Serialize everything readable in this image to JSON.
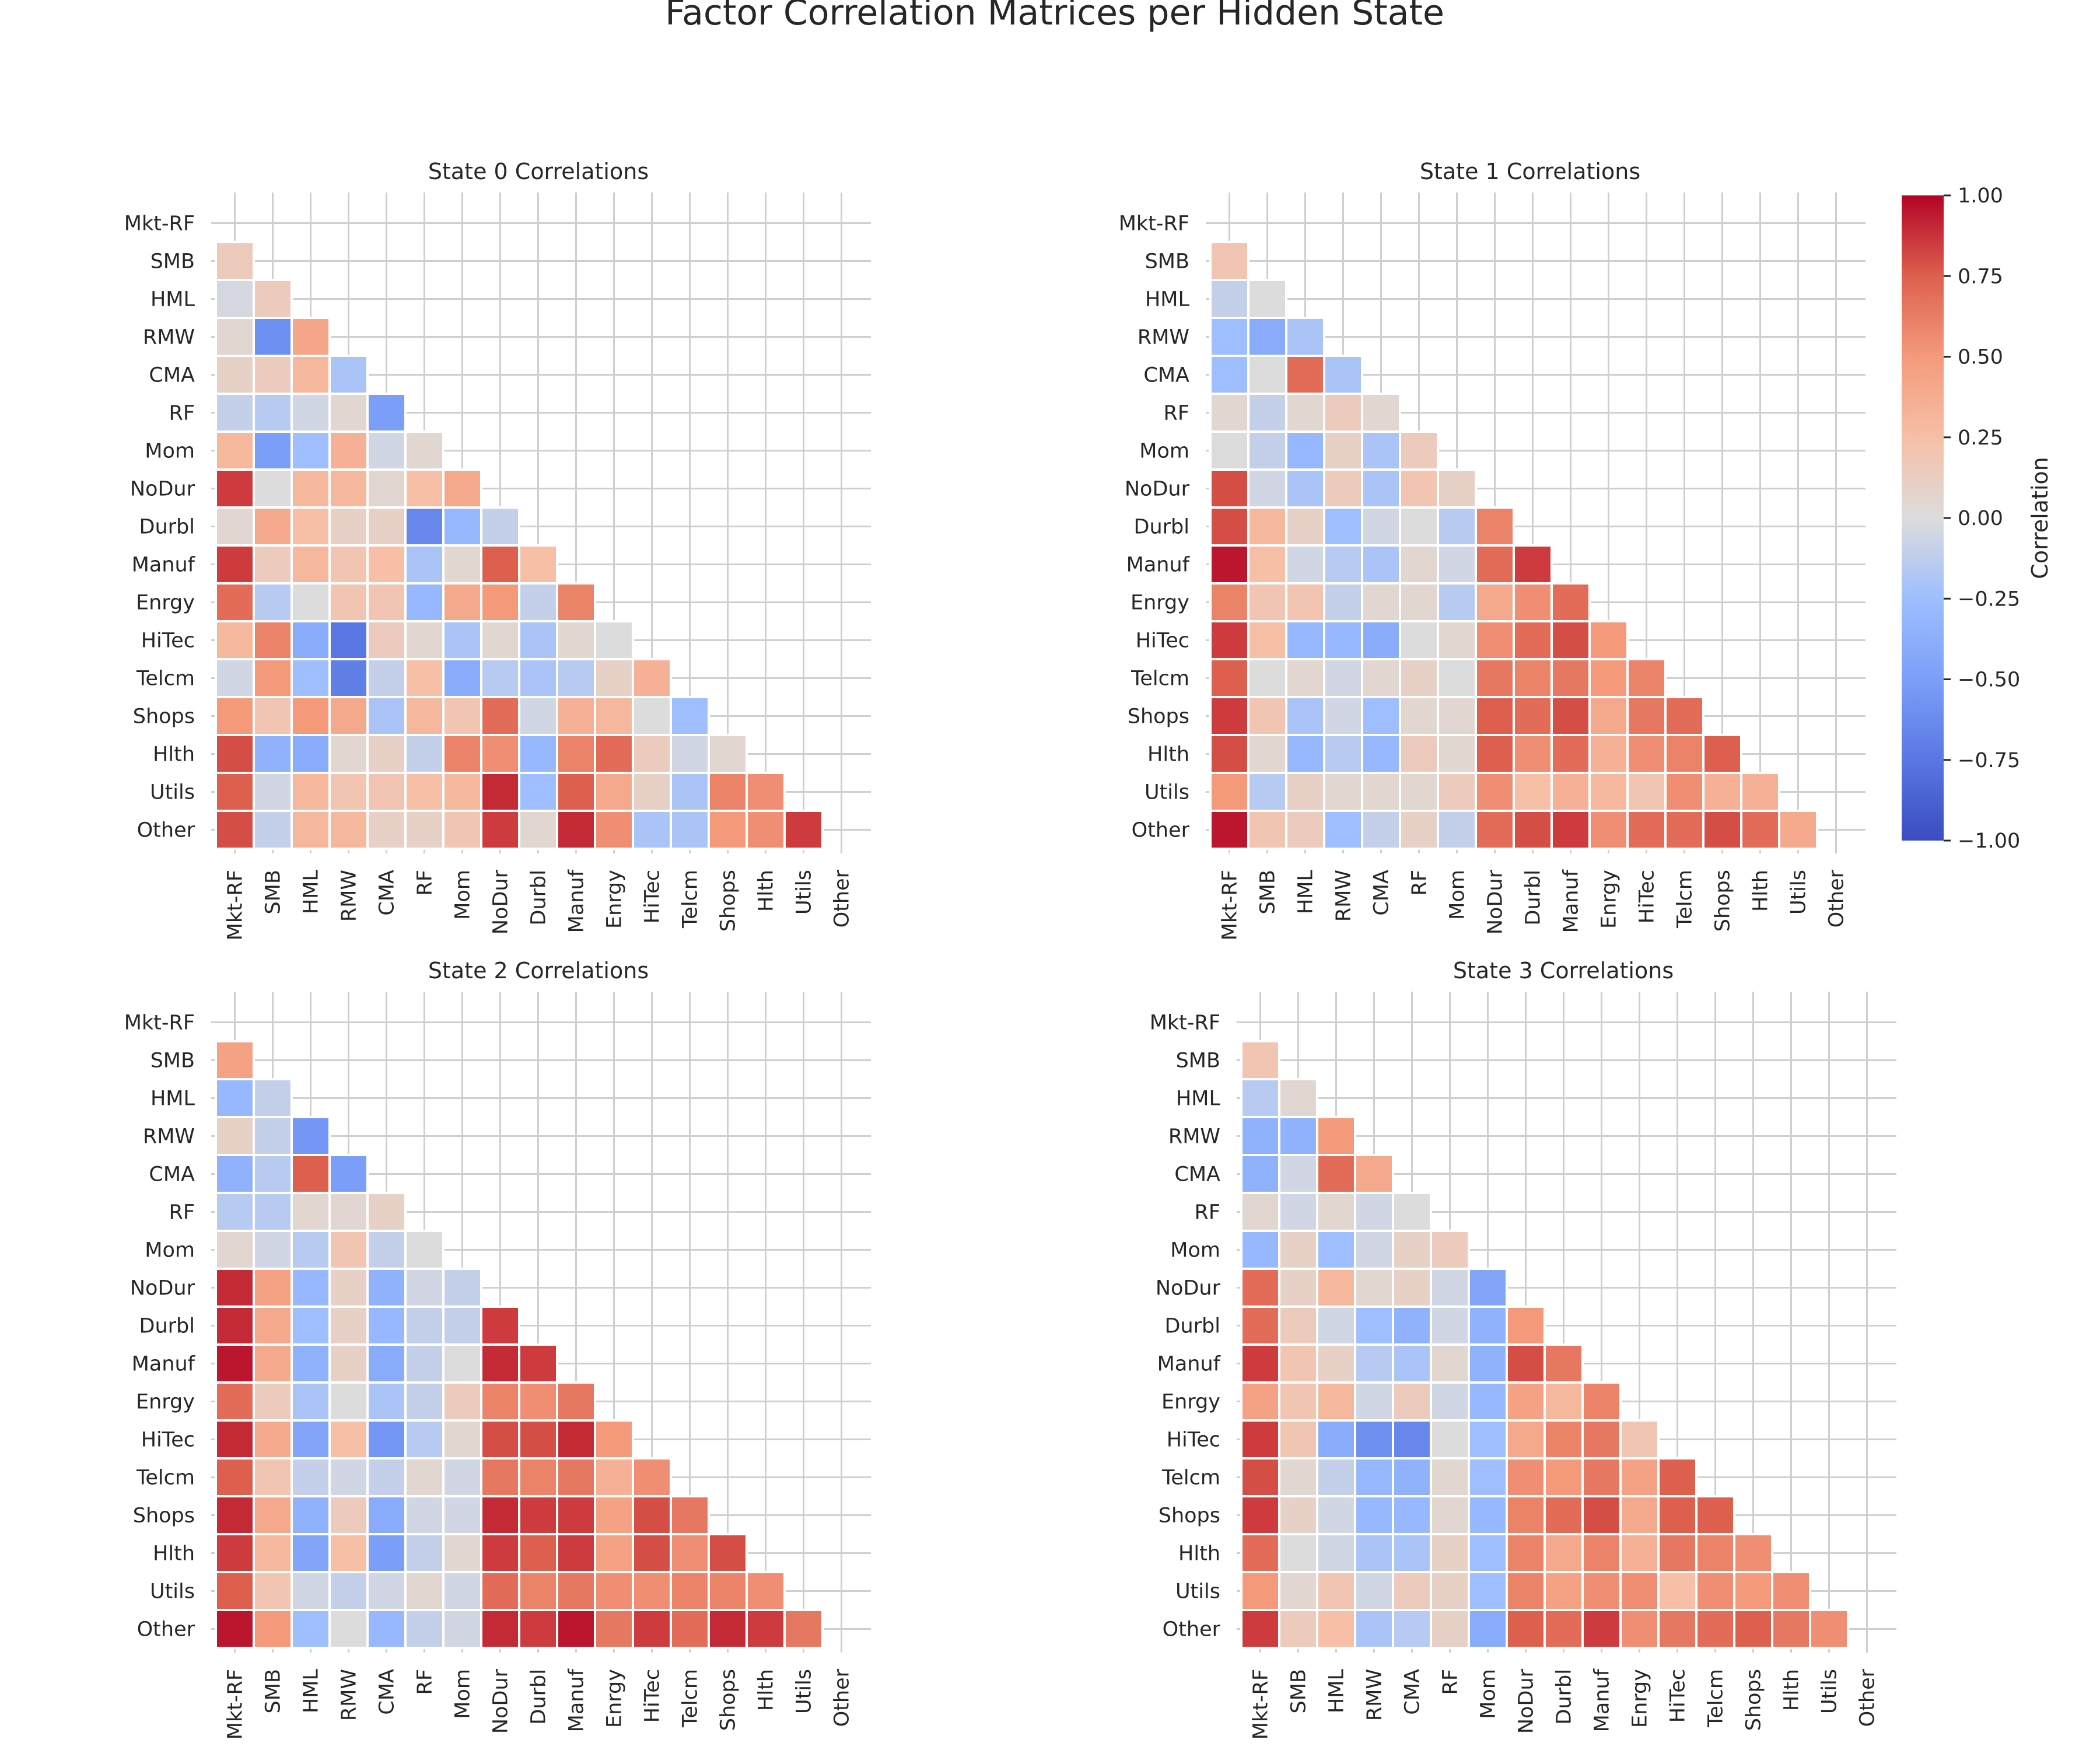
{
  "figure": {
    "title": "Factor Correlation Matrices per Hidden State",
    "colorbar": {
      "label": "Correlation",
      "ticks": [
        "1.00",
        "0.75",
        "0.50",
        "0.25",
        "0.00",
        "−0.25",
        "−0.50",
        "−0.75",
        "−1.00"
      ],
      "range": [
        -1,
        1
      ],
      "colormap": "coolwarm",
      "colors": [
        "#3b4cc0",
        "#dddcdc",
        "#b40426"
      ]
    }
  },
  "chart_data": [
    {
      "type": "heatmap",
      "title": "State 0 Correlations",
      "labels": [
        "Mkt-RF",
        "SMB",
        "HML",
        "RMW",
        "CMA",
        "RF",
        "Mom",
        "NoDur",
        "Durbl",
        "Manuf",
        "Enrgy",
        "HiTec",
        "Telcm",
        "Shops",
        "Hlth",
        "Utils",
        "Other"
      ],
      "mask": "upper-triangle-including-diagonal",
      "grid": true,
      "values": [
        [],
        [
          0.15
        ],
        [
          -0.03,
          0.15
        ],
        [
          0.05,
          -0.6,
          0.42
        ],
        [
          0.1,
          0.15,
          0.3,
          -0.2
        ],
        [
          -0.1,
          -0.15,
          -0.05,
          0.05,
          -0.5
        ],
        [
          0.3,
          -0.5,
          -0.25,
          0.35,
          -0.05,
          0.05
        ],
        [
          0.85,
          0.0,
          0.3,
          0.3,
          0.05,
          0.25,
          0.4
        ],
        [
          0.05,
          0.4,
          0.25,
          0.1,
          0.1,
          -0.65,
          -0.3,
          -0.1
        ],
        [
          0.85,
          0.15,
          0.3,
          0.2,
          0.25,
          -0.2,
          0.05,
          0.75,
          0.25
        ],
        [
          0.7,
          -0.15,
          0.0,
          0.2,
          0.2,
          -0.3,
          0.4,
          0.5,
          -0.1,
          0.6
        ],
        [
          0.3,
          0.6,
          -0.4,
          -0.75,
          0.15,
          0.05,
          -0.2,
          0.05,
          -0.2,
          0.05,
          0.0
        ],
        [
          -0.05,
          0.5,
          -0.25,
          -0.7,
          -0.1,
          0.25,
          -0.4,
          -0.15,
          -0.2,
          -0.15,
          0.1,
          0.35
        ],
        [
          0.5,
          0.2,
          0.5,
          0.4,
          -0.2,
          0.3,
          0.2,
          0.7,
          -0.05,
          0.35,
          0.3,
          0.0,
          -0.25
        ],
        [
          0.8,
          -0.35,
          -0.4,
          0.05,
          0.1,
          -0.1,
          0.6,
          0.55,
          -0.3,
          0.6,
          0.7,
          0.15,
          -0.05,
          0.05
        ],
        [
          0.75,
          -0.05,
          0.3,
          0.2,
          0.2,
          0.25,
          0.3,
          0.9,
          -0.25,
          0.75,
          0.4,
          0.1,
          -0.2,
          0.6,
          0.55
        ],
        [
          0.8,
          -0.1,
          0.3,
          0.3,
          0.1,
          0.1,
          0.2,
          0.85,
          0.05,
          0.9,
          0.55,
          -0.2,
          -0.2,
          0.5,
          0.55,
          0.85
        ]
      ]
    },
    {
      "type": "heatmap",
      "title": "State 1 Correlations",
      "labels": [
        "Mkt-RF",
        "SMB",
        "HML",
        "RMW",
        "CMA",
        "RF",
        "Mom",
        "NoDur",
        "Durbl",
        "Manuf",
        "Enrgy",
        "HiTec",
        "Telcm",
        "Shops",
        "Hlth",
        "Utils",
        "Other"
      ],
      "mask": "upper-triangle-including-diagonal",
      "grid": true,
      "values": [
        [],
        [
          0.2
        ],
        [
          -0.1,
          0.0
        ],
        [
          -0.25,
          -0.4,
          -0.2
        ],
        [
          -0.25,
          0.0,
          0.7,
          -0.2
        ],
        [
          0.05,
          -0.1,
          0.05,
          0.15,
          0.05
        ],
        [
          0.0,
          -0.1,
          -0.3,
          0.1,
          -0.2,
          0.15
        ],
        [
          0.8,
          -0.05,
          -0.2,
          0.15,
          -0.2,
          0.2,
          0.1
        ],
        [
          0.8,
          0.3,
          0.1,
          -0.25,
          -0.05,
          0.0,
          -0.15,
          0.6
        ],
        [
          0.95,
          0.25,
          -0.05,
          -0.15,
          -0.2,
          0.05,
          -0.05,
          0.7,
          0.85
        ],
        [
          0.6,
          0.2,
          0.2,
          -0.1,
          0.05,
          0.05,
          -0.15,
          0.4,
          0.55,
          0.7
        ],
        [
          0.85,
          0.25,
          -0.3,
          -0.3,
          -0.4,
          0.0,
          0.05,
          0.55,
          0.7,
          0.8,
          0.5
        ],
        [
          0.75,
          0.0,
          0.05,
          -0.05,
          0.05,
          0.1,
          0.0,
          0.65,
          0.6,
          0.65,
          0.5,
          0.6
        ],
        [
          0.85,
          0.2,
          -0.2,
          -0.05,
          -0.25,
          0.05,
          0.05,
          0.75,
          0.7,
          0.8,
          0.4,
          0.65,
          0.7
        ],
        [
          0.8,
          0.05,
          -0.3,
          -0.15,
          -0.3,
          0.15,
          0.05,
          0.75,
          0.55,
          0.7,
          0.35,
          0.55,
          0.6,
          0.75
        ],
        [
          0.5,
          -0.15,
          0.1,
          0.05,
          0.05,
          0.05,
          0.15,
          0.55,
          0.25,
          0.35,
          0.3,
          0.2,
          0.55,
          0.35,
          0.35
        ],
        [
          0.95,
          0.2,
          0.15,
          -0.25,
          -0.1,
          0.1,
          -0.1,
          0.7,
          0.8,
          0.85,
          0.55,
          0.7,
          0.7,
          0.8,
          0.7,
          0.4
        ]
      ]
    },
    {
      "type": "heatmap",
      "title": "State 2 Correlations",
      "labels": [
        "Mkt-RF",
        "SMB",
        "HML",
        "RMW",
        "CMA",
        "RF",
        "Mom",
        "NoDur",
        "Durbl",
        "Manuf",
        "Enrgy",
        "HiTec",
        "Telcm",
        "Shops",
        "Hlth",
        "Utils",
        "Other"
      ],
      "mask": "upper-triangle-including-diagonal",
      "grid": true,
      "values": [
        [],
        [
          0.45
        ],
        [
          -0.3,
          -0.1
        ],
        [
          0.1,
          -0.1,
          -0.55
        ],
        [
          -0.35,
          -0.15,
          0.75,
          -0.5
        ],
        [
          -0.15,
          -0.15,
          0.05,
          0.05,
          0.1
        ],
        [
          0.05,
          -0.05,
          -0.15,
          0.2,
          -0.1,
          0.0
        ],
        [
          0.9,
          0.45,
          -0.3,
          0.1,
          -0.35,
          -0.05,
          -0.1
        ],
        [
          0.9,
          0.4,
          -0.25,
          0.1,
          -0.3,
          -0.1,
          -0.1,
          0.85
        ],
        [
          0.95,
          0.4,
          -0.35,
          0.1,
          -0.4,
          -0.1,
          0.0,
          0.9,
          0.85
        ],
        [
          0.7,
          0.15,
          -0.2,
          0.0,
          -0.2,
          -0.1,
          0.15,
          0.6,
          0.55,
          0.65
        ],
        [
          0.9,
          0.4,
          -0.45,
          0.25,
          -0.55,
          -0.15,
          0.05,
          0.8,
          0.8,
          0.9,
          0.5
        ],
        [
          0.75,
          0.2,
          -0.1,
          -0.05,
          -0.1,
          0.05,
          -0.05,
          0.65,
          0.6,
          0.65,
          0.35,
          0.55
        ],
        [
          0.9,
          0.4,
          -0.35,
          0.15,
          -0.4,
          -0.05,
          -0.05,
          0.9,
          0.85,
          0.85,
          0.45,
          0.8,
          0.65
        ],
        [
          0.85,
          0.3,
          -0.45,
          0.25,
          -0.5,
          -0.1,
          0.05,
          0.85,
          0.75,
          0.85,
          0.45,
          0.8,
          0.55,
          0.8
        ],
        [
          0.75,
          0.2,
          -0.05,
          -0.1,
          -0.05,
          0.05,
          -0.05,
          0.7,
          0.6,
          0.65,
          0.55,
          0.55,
          0.6,
          0.6,
          0.55
        ],
        [
          0.95,
          0.5,
          -0.25,
          0.0,
          -0.3,
          -0.1,
          -0.05,
          0.9,
          0.85,
          0.95,
          0.65,
          0.85,
          0.7,
          0.9,
          0.85,
          0.65
        ]
      ]
    },
    {
      "type": "heatmap",
      "title": "State 3 Correlations",
      "labels": [
        "Mkt-RF",
        "SMB",
        "HML",
        "RMW",
        "CMA",
        "RF",
        "Mom",
        "NoDur",
        "Durbl",
        "Manuf",
        "Enrgy",
        "HiTec",
        "Telcm",
        "Shops",
        "Hlth",
        "Utils",
        "Other"
      ],
      "mask": "upper-triangle-including-diagonal",
      "grid": true,
      "values": [
        [],
        [
          0.2
        ],
        [
          -0.15,
          0.05
        ],
        [
          -0.35,
          -0.35,
          0.5
        ],
        [
          -0.35,
          -0.05,
          0.7,
          0.4
        ],
        [
          0.05,
          -0.05,
          0.05,
          -0.05,
          0.0
        ],
        [
          -0.3,
          0.1,
          -0.25,
          -0.05,
          0.1,
          0.15
        ],
        [
          0.7,
          0.1,
          0.3,
          0.05,
          0.1,
          -0.05,
          -0.45
        ],
        [
          0.7,
          0.15,
          -0.05,
          -0.25,
          -0.35,
          -0.05,
          -0.35,
          0.5
        ],
        [
          0.85,
          0.2,
          0.1,
          -0.15,
          -0.2,
          0.05,
          -0.35,
          0.8,
          0.65
        ],
        [
          0.45,
          0.2,
          0.3,
          -0.05,
          0.15,
          -0.05,
          -0.3,
          0.45,
          0.3,
          0.6
        ],
        [
          0.85,
          0.2,
          -0.4,
          -0.6,
          -0.65,
          0.0,
          -0.25,
          0.4,
          0.6,
          0.65,
          0.2
        ],
        [
          0.8,
          0.05,
          -0.1,
          -0.3,
          -0.35,
          0.05,
          -0.25,
          0.55,
          0.5,
          0.65,
          0.45,
          0.75
        ],
        [
          0.85,
          0.1,
          -0.05,
          -0.3,
          -0.3,
          0.05,
          -0.3,
          0.6,
          0.7,
          0.8,
          0.4,
          0.75,
          0.75
        ],
        [
          0.7,
          0.0,
          -0.05,
          -0.2,
          -0.2,
          0.1,
          -0.25,
          0.6,
          0.4,
          0.6,
          0.35,
          0.65,
          0.6,
          0.55
        ],
        [
          0.5,
          0.05,
          0.2,
          -0.05,
          0.15,
          0.1,
          -0.25,
          0.6,
          0.45,
          0.55,
          0.55,
          0.25,
          0.55,
          0.5,
          0.55
        ],
        [
          0.85,
          0.15,
          0.25,
          -0.2,
          -0.15,
          0.1,
          -0.4,
          0.75,
          0.7,
          0.85,
          0.55,
          0.65,
          0.7,
          0.75,
          0.65,
          0.55
        ]
      ]
    }
  ]
}
